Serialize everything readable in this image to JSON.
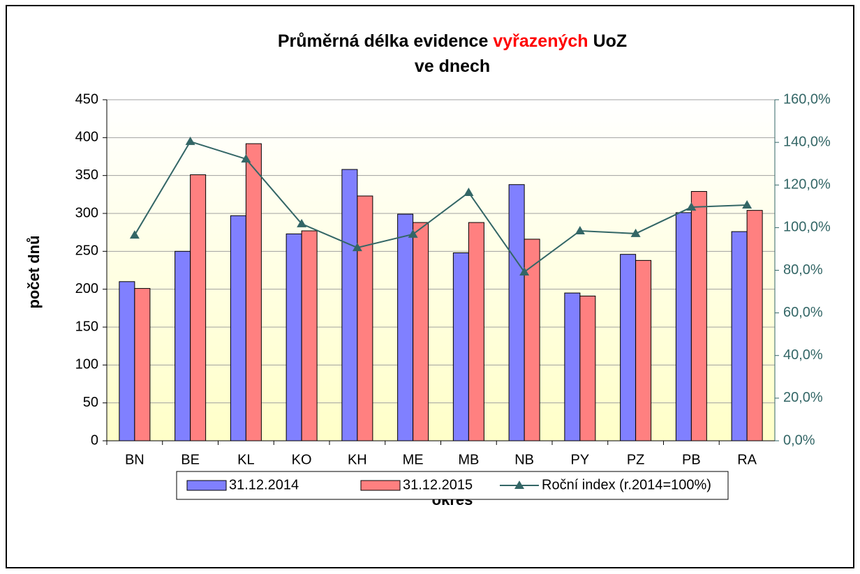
{
  "chart_data": {
    "type": "bar",
    "title": {
      "lines": [
        [
          {
            "text": "Průměrná délka evidence",
            "color": "#000000"
          },
          {
            "text": "vyřazených",
            "color": "#ff0000"
          },
          {
            "text": "UoZ",
            "color": "#000000"
          }
        ],
        [
          {
            "text": "ve dnech",
            "color": "#000000"
          }
        ]
      ]
    },
    "x_label": "okres",
    "y_label": "počet dnů",
    "categories": [
      "BN",
      "BE",
      "KL",
      "KO",
      "KH",
      "ME",
      "MB",
      "NB",
      "PY",
      "PZ",
      "PB",
      "RA"
    ],
    "series": [
      {
        "name": "31.12.2014",
        "type": "bar",
        "color": "#8080ff",
        "values": [
          210,
          250,
          297,
          273,
          358,
          299,
          248,
          338,
          195,
          246,
          301,
          276
        ]
      },
      {
        "name": "31.12.2015",
        "type": "bar",
        "color": "#ff8080",
        "values": [
          201,
          351,
          392,
          277,
          323,
          288,
          288,
          266,
          191,
          238,
          329,
          304
        ]
      },
      {
        "name": "Roční index (r.2014=100%)",
        "type": "line",
        "axis": "y2",
        "color": "#336666",
        "values": [
          96.5,
          140.4,
          132.2,
          101.8,
          90.6,
          96.9,
          116.5,
          79.2,
          98.5,
          97.2,
          109.6,
          110.6
        ]
      }
    ],
    "ylim": [
      0,
      450
    ],
    "yticks": [
      0,
      50,
      100,
      150,
      200,
      250,
      300,
      350,
      400,
      450
    ],
    "y2lim": [
      0,
      160
    ],
    "y2ticks": [
      {
        "value": 0,
        "label": "0,0%"
      },
      {
        "value": 20,
        "label": "20,0%"
      },
      {
        "value": 40,
        "label": "40,0%"
      },
      {
        "value": 60,
        "label": "60,0%"
      },
      {
        "value": 80,
        "label": "80,0%"
      },
      {
        "value": 100,
        "label": "100,0%"
      },
      {
        "value": 120,
        "label": "120,0%"
      },
      {
        "value": 140,
        "label": "140,0%"
      },
      {
        "value": 160,
        "label": "160,0%"
      }
    ],
    "grid": true,
    "legend": "bottom"
  }
}
